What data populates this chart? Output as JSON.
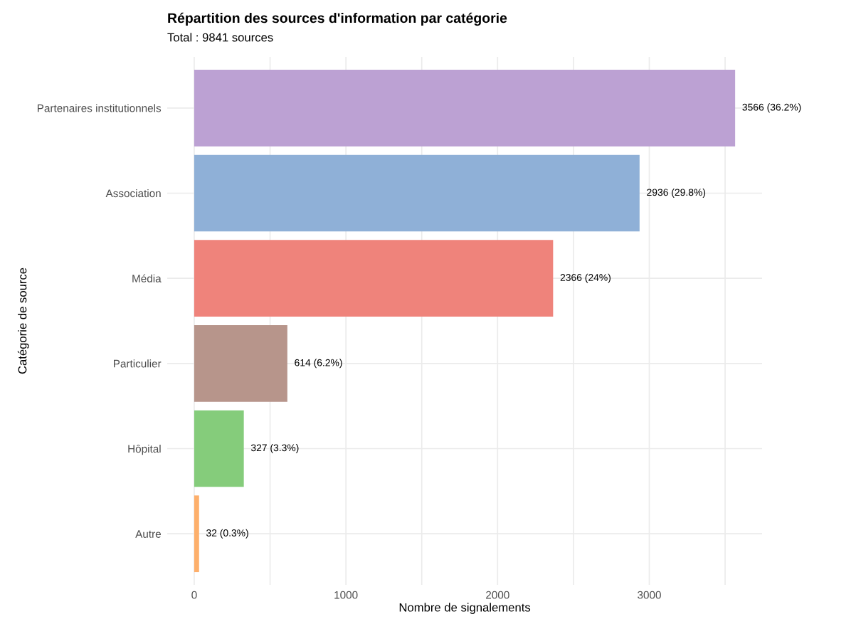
{
  "chart_data": {
    "type": "bar",
    "orientation": "horizontal",
    "title": "Répartition des sources d'information par catégorie",
    "subtitle": "Total : 9841 sources",
    "xlabel": "Nombre de signalements",
    "ylabel": "Catégorie de source",
    "categories": [
      "Partenaires institutionnels",
      "Association",
      "Média",
      "Particulier",
      "Hôpital",
      "Autre"
    ],
    "values": [
      3566,
      2936,
      2366,
      614,
      327,
      32
    ],
    "colors": [
      "#bca1d3",
      "#8fb0d7",
      "#ef837b",
      "#b7958b",
      "#85cc7b",
      "#fdaf6b"
    ],
    "value_labels": [
      "3566 (36.2%)",
      "2936 (29.8%)",
      "2366 (24%)",
      "614 (6.2%)",
      "327 (3.3%)",
      "32 (0.3%)"
    ],
    "xlim": [
      -178,
      3744
    ],
    "xticks": [
      0,
      {
        "value": 500,
        "label": null
      },
      1000,
      {
        "value": 1500,
        "label": null
      },
      2000,
      {
        "value": 2500,
        "label": null
      },
      3000,
      {
        "value": 3500,
        "label": null
      }
    ],
    "grid": true,
    "legend": false
  }
}
